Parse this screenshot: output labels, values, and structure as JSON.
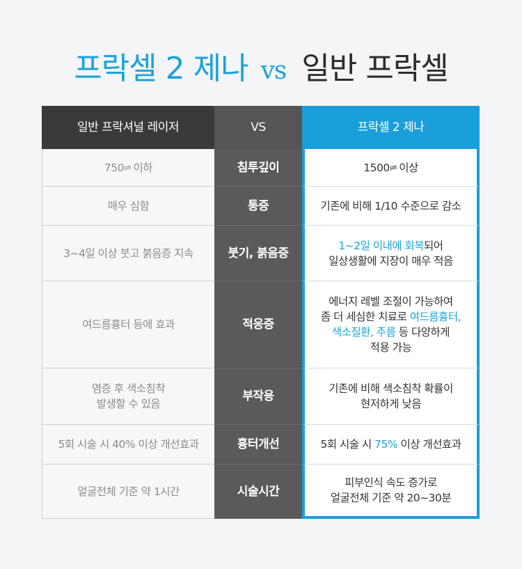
{
  "title": {
    "left": "프락셀 2 제나",
    "vs": "vs",
    "right": "일반 프락셀"
  },
  "table": {
    "header": {
      "left": "일반 프락셔널 레이저",
      "middle": "VS",
      "right": "프락셀 2 제나"
    },
    "rows": [
      {
        "category": "침투깊이",
        "left_value": "750",
        "left_unit": "㎛",
        "left_suffix": "이하",
        "right_value": "1500",
        "right_unit": "㎛",
        "right_suffix": "이상"
      },
      {
        "category": "통증",
        "left": "매우 심함",
        "right": "기존에 비해 1/10 수준으로 감소"
      },
      {
        "category": "붓기, 붉음증",
        "left": "3~4일 이상 붓고 붉음증 지속",
        "right_hl": "1~2일 이내에 회복",
        "right_a": "되어\n일상생활에 지장이 매우 적음"
      },
      {
        "category": "적응증",
        "left": "여드름흉터 등에 효과",
        "right_a": "에너지 레벨 조절이 가능하여\n좀 더 세심한 치료로 ",
        "right_hl": "여드름흉터,\n색소질환, 주름",
        "right_b": " 등 다양하게\n적용 가능"
      },
      {
        "category": "부작용",
        "left": "염증 후 색소침착\n발생할 수 있음",
        "right": "기존에 비해 색소침착 확률이\n현저하게 낮음"
      },
      {
        "category": "흉터개선",
        "left": "5회 시술 시 40% 이상 개선효과",
        "right_a": "5회 시술 시 ",
        "right_hl": "75%",
        "right_b": " 이상 개선효과"
      },
      {
        "category": "시술시간",
        "left": "얼굴전체 기준 약 1시간",
        "right": "피부인식 속도 증가로\n얼굴전체 기준 약 20~30분"
      }
    ]
  },
  "colors": {
    "accent": "#1ba3db",
    "header_dark": "#3a3a3a",
    "category_bg": "#5a5a5a"
  }
}
